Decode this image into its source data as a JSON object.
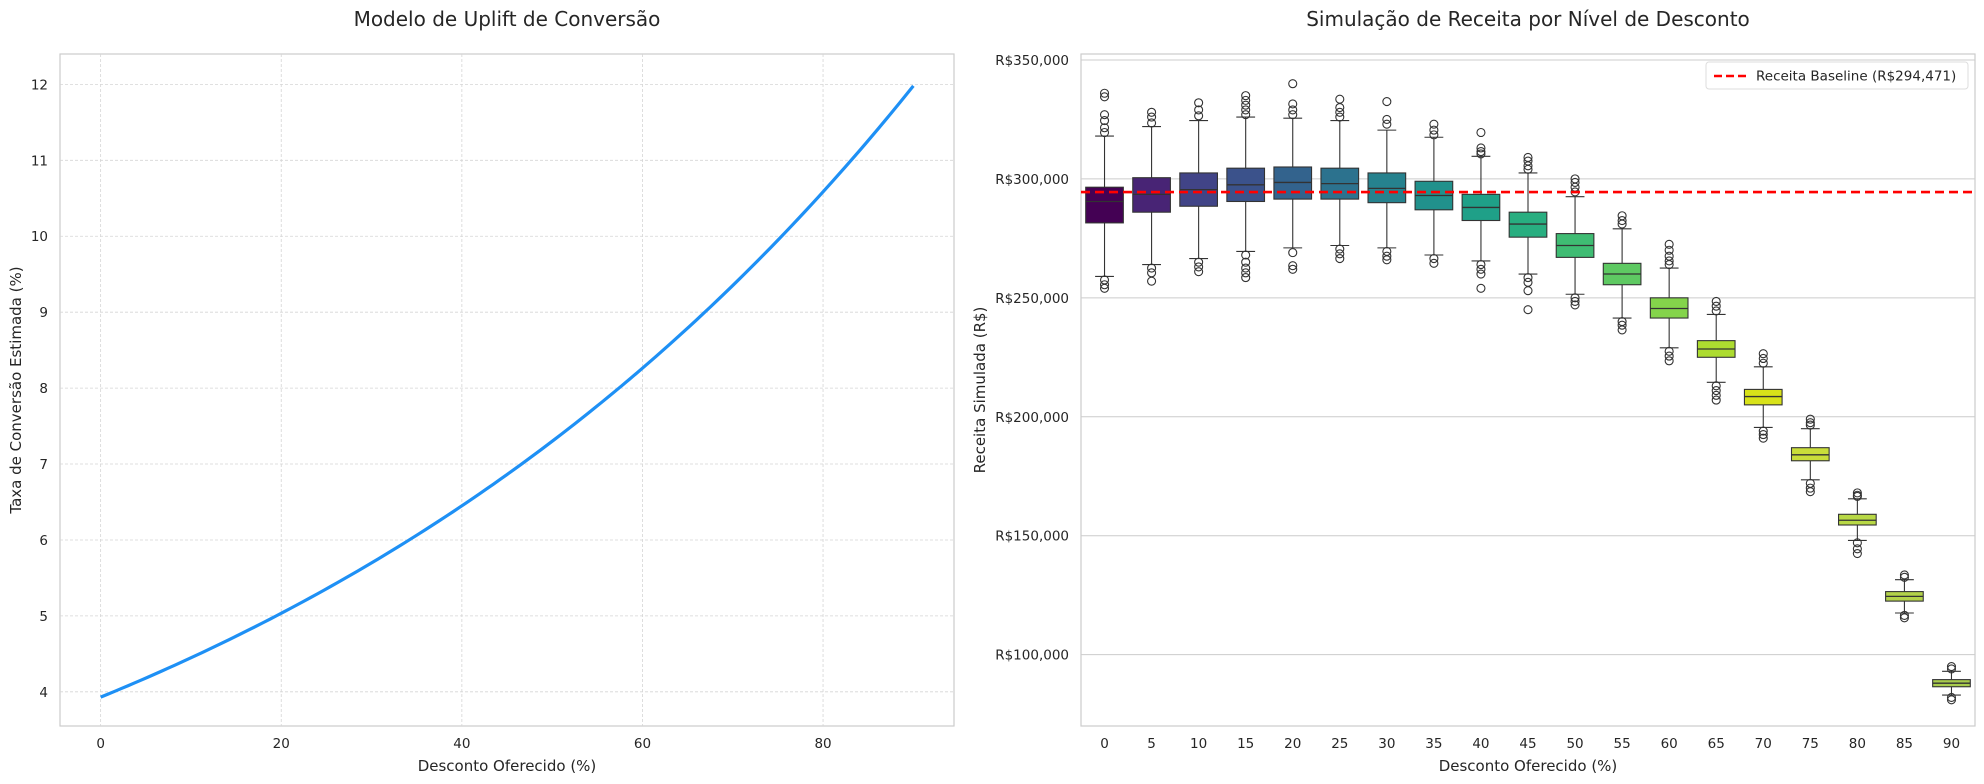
{
  "chart_data": [
    {
      "type": "line",
      "title": "Modelo de Uplift de Conversão",
      "xlabel": "Desconto Oferecido (%)",
      "ylabel": "Taxa de Conversão Estimada (%)",
      "xlim": [
        -4.5,
        94.5
      ],
      "ylim": [
        3.55,
        12.4
      ],
      "xticks": [
        0,
        20,
        40,
        60,
        80
      ],
      "yticks": [
        4,
        5,
        6,
        7,
        8,
        9,
        10,
        11,
        12
      ],
      "grid": true,
      "color": "#1E90F5",
      "series": [
        {
          "x": [
            0,
            5,
            10,
            15,
            20,
            25,
            30,
            35,
            40,
            45,
            50,
            55,
            60,
            65,
            70,
            75,
            80,
            85,
            90
          ],
          "y": [
            3.93,
            4.17,
            4.44,
            4.73,
            5.06,
            5.41,
            5.78,
            6.18,
            6.61,
            7.07,
            7.56,
            8.08,
            8.64,
            9.24,
            9.87,
            10.54,
            11.24,
            11.98,
            11.98
          ]
        }
      ]
    },
    {
      "type": "box",
      "title": "Simulação de Receita por Nível de Desconto",
      "xlabel": "Desconto Oferecido (%)",
      "ylabel": "Receita Simulada (R$)",
      "ylim": [
        70000,
        352500
      ],
      "yticks": [
        100000,
        150000,
        200000,
        250000,
        300000,
        350000
      ],
      "ytick_labels": [
        "R$100,000",
        "R$150,000",
        "R$200,000",
        "R$250,000",
        "R$300,000",
        "R$350,000"
      ],
      "grid": true,
      "legend_position": "top-right",
      "categories": [
        "0",
        "5",
        "10",
        "15",
        "20",
        "25",
        "30",
        "35",
        "40",
        "45",
        "50",
        "55",
        "60",
        "65",
        "70",
        "75",
        "80",
        "85",
        "90"
      ],
      "baseline": {
        "label": "Receita Baseline (R$294,471)",
        "value": 294471,
        "color": "#FF0000"
      },
      "boxes": [
        {
          "q1": 281500,
          "median": 290500,
          "q3": 296500,
          "whislo": 259000,
          "whishi": 318000,
          "fliers": [
            336000,
            334500,
            327000,
            324500,
            321500,
            319500,
            257500,
            255500,
            254000
          ],
          "color": "#440154"
        },
        {
          "q1": 286000,
          "median": 293500,
          "q3": 300500,
          "whislo": 264000,
          "whishi": 322000,
          "fliers": [
            328000,
            326000,
            323500,
            262500,
            260500,
            257000
          ],
          "color": "#482475"
        },
        {
          "q1": 288500,
          "median": 295500,
          "q3": 302500,
          "whislo": 266500,
          "whishi": 324500,
          "fliers": [
            332000,
            329000,
            326500,
            265000,
            263000,
            261000
          ],
          "color": "#414487"
        },
        {
          "q1": 290500,
          "median": 297500,
          "q3": 304500,
          "whislo": 269500,
          "whishi": 326000,
          "fliers": [
            335000,
            333000,
            331000,
            329000,
            327000,
            268000,
            265000,
            262500,
            260500,
            258500
          ],
          "color": "#3B528B"
        },
        {
          "q1": 291500,
          "median": 298500,
          "q3": 305000,
          "whislo": 271000,
          "whishi": 325500,
          "fliers": [
            340000,
            331500,
            329000,
            327000,
            269000,
            263500,
            262000
          ],
          "color": "#33638D"
        },
        {
          "q1": 291500,
          "median": 298000,
          "q3": 304500,
          "whislo": 272000,
          "whishi": 324500,
          "fliers": [
            333500,
            330000,
            328000,
            326000,
            270500,
            268500,
            266500
          ],
          "color": "#2C728E"
        },
        {
          "q1": 290000,
          "median": 296000,
          "q3": 302500,
          "whislo": 271000,
          "whishi": 320500,
          "fliers": [
            332500,
            325000,
            323000,
            269500,
            267500,
            266000
          ],
          "color": "#26828E"
        },
        {
          "q1": 287000,
          "median": 293000,
          "q3": 299000,
          "whislo": 268000,
          "whishi": 317500,
          "fliers": [
            323000,
            320500,
            318500,
            266500,
            264500
          ],
          "color": "#21918C"
        },
        {
          "q1": 282500,
          "median": 288000,
          "q3": 293500,
          "whislo": 265500,
          "whishi": 309500,
          "fliers": [
            319500,
            313000,
            311500,
            310500,
            264000,
            262000,
            260000,
            254000
          ],
          "color": "#1FA088"
        },
        {
          "q1": 275500,
          "median": 281000,
          "q3": 286000,
          "whislo": 260000,
          "whishi": 302500,
          "fliers": [
            309000,
            307500,
            305500,
            304000,
            258500,
            256500,
            253000,
            245000
          ],
          "color": "#28AE80"
        },
        {
          "q1": 267000,
          "median": 272000,
          "q3": 277000,
          "whislo": 251500,
          "whishi": 292500,
          "fliers": [
            300000,
            298500,
            296500,
            294500,
            250000,
            248500,
            247000
          ],
          "color": "#3FBC73"
        },
        {
          "q1": 255500,
          "median": 260000,
          "q3": 264500,
          "whislo": 241500,
          "whishi": 279000,
          "fliers": [
            284500,
            282500,
            281000,
            240000,
            238500,
            236500
          ],
          "color": "#5EC962"
        },
        {
          "q1": 241500,
          "median": 245500,
          "q3": 250000,
          "whislo": 229000,
          "whishi": 262500,
          "fliers": [
            272500,
            270000,
            267500,
            265500,
            264000,
            227500,
            225500,
            223500
          ],
          "color": "#84D44B"
        },
        {
          "q1": 225000,
          "median": 228500,
          "q3": 232000,
          "whislo": 214500,
          "whishi": 243000,
          "fliers": [
            248500,
            246500,
            244500,
            213000,
            211000,
            209000,
            207000
          ],
          "color": "#ADDC30"
        },
        {
          "q1": 205000,
          "median": 208500,
          "q3": 211500,
          "whislo": 195500,
          "whishi": 221000,
          "fliers": [
            226500,
            224500,
            222500,
            194000,
            192500,
            191000
          ],
          "color": "#D8E219"
        },
        {
          "q1": 181500,
          "median": 184000,
          "q3": 187000,
          "whislo": 173500,
          "whishi": 195000,
          "fliers": [
            199000,
            197500,
            196500,
            172000,
            170000,
            168500
          ],
          "color": "#C9DD3A"
        },
        {
          "q1": 154500,
          "median": 156500,
          "q3": 159000,
          "whislo": 148000,
          "whishi": 165500,
          "fliers": [
            168000,
            167000,
            166500,
            147000,
            144500,
            142500
          ],
          "color": "#B8D845"
        },
        {
          "q1": 122500,
          "median": 124500,
          "q3": 126500,
          "whislo": 117500,
          "whishi": 131500,
          "fliers": [
            133500,
            132500,
            116500,
            115500
          ],
          "color": "#B3D24A"
        },
        {
          "q1": 86500,
          "median": 88000,
          "q3": 89500,
          "whislo": 83000,
          "whishi": 93000,
          "fliers": [
            95000,
            94000,
            82000,
            81000
          ],
          "color": "#A8CB4C"
        }
      ]
    }
  ]
}
